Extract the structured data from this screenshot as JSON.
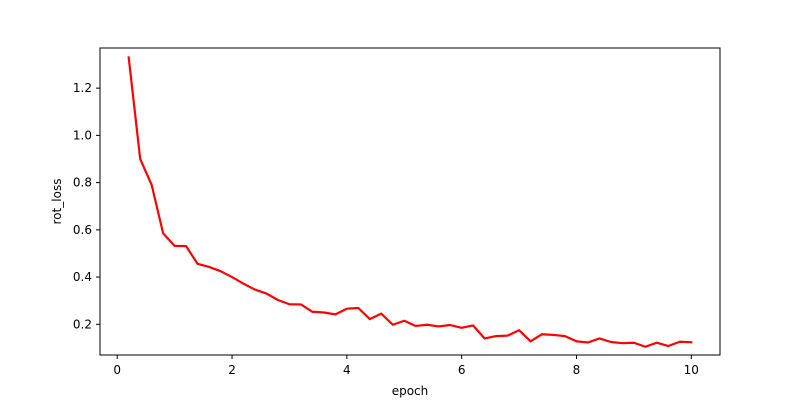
{
  "chart_data": {
    "type": "line",
    "title": "",
    "xlabel": "epoch",
    "ylabel": "rot_loss",
    "xlim": [
      -0.3,
      10.5
    ],
    "ylim": [
      0.07,
      1.37
    ],
    "xticks": [
      0,
      2,
      4,
      6,
      8,
      10
    ],
    "yticks": [
      0.2,
      0.4,
      0.6,
      0.8,
      1.0,
      1.2
    ],
    "xtick_labels": [
      "0",
      "2",
      "4",
      "6",
      "8",
      "10"
    ],
    "ytick_labels": [
      "0.2",
      "0.4",
      "0.6",
      "0.8",
      "1.0",
      "1.2"
    ],
    "grid": false,
    "series": [
      {
        "name": "rot_loss",
        "color": "#ff0000",
        "x": [
          0.2,
          0.4,
          0.6,
          0.8,
          1.0,
          1.2,
          1.4,
          1.6,
          1.8,
          2.0,
          2.2,
          2.4,
          2.6,
          2.8,
          3.0,
          3.2,
          3.4,
          3.6,
          3.8,
          4.0,
          4.2,
          4.4,
          4.6,
          4.8,
          5.0,
          5.2,
          5.4,
          5.6,
          5.8,
          6.0,
          6.2,
          6.4,
          6.6,
          6.8,
          7.0,
          7.2,
          7.4,
          7.6,
          7.8,
          8.0,
          8.2,
          8.4,
          8.6,
          8.8,
          9.0,
          9.2,
          9.4,
          9.6,
          9.8,
          10.0
        ],
        "values": [
          1.33,
          0.9,
          0.79,
          0.585,
          0.532,
          0.531,
          0.456,
          0.443,
          0.425,
          0.4,
          0.372,
          0.347,
          0.33,
          0.303,
          0.285,
          0.284,
          0.253,
          0.25,
          0.242,
          0.266,
          0.269,
          0.222,
          0.245,
          0.198,
          0.215,
          0.193,
          0.198,
          0.191,
          0.197,
          0.185,
          0.195,
          0.14,
          0.15,
          0.152,
          0.175,
          0.128,
          0.158,
          0.155,
          0.15,
          0.128,
          0.123,
          0.14,
          0.125,
          0.12,
          0.122,
          0.105,
          0.122,
          0.108,
          0.126,
          0.124
        ]
      }
    ]
  }
}
